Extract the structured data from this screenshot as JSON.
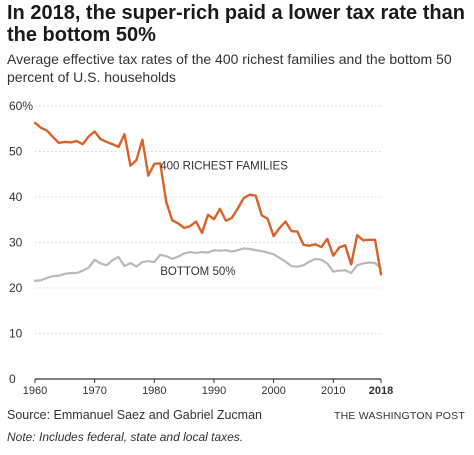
{
  "header": {
    "title": "In 2018, the super-rich paid a lower tax rate than the bottom 50%",
    "subtitle": "Average effective tax rates of the 400 richest families and the bottom 50 percent of U.S. households"
  },
  "footer": {
    "source": "Source: Emmanuel Saez and Gabriel Zucman",
    "credit": "THE WASHINGTON POST",
    "note": "Note: Includes federal, state and local taxes."
  },
  "colors": {
    "richest": "#d9622b",
    "bottom": "#b9b9b9",
    "axis": "#333333",
    "grid": "#d4d4d4",
    "text": "#333333"
  },
  "chart_data": {
    "type": "line",
    "title": "In 2018, the super-rich paid a lower tax rate than the bottom 50%",
    "xlim": [
      1960,
      2018
    ],
    "ylim": [
      0,
      60
    ],
    "x_ticks": [
      {
        "value": 1960,
        "label": "1960"
      },
      {
        "value": 1970,
        "label": "1970"
      },
      {
        "value": 1980,
        "label": "1980"
      },
      {
        "value": 1990,
        "label": "1990"
      },
      {
        "value": 2000,
        "label": "2000"
      },
      {
        "value": 2010,
        "label": "2010"
      },
      {
        "value": 2018,
        "label": "2018",
        "bold": true
      }
    ],
    "y_ticks": [
      {
        "value": 0,
        "label": "0"
      },
      {
        "value": 10,
        "label": "10"
      },
      {
        "value": 20,
        "label": "20"
      },
      {
        "value": 30,
        "label": "30"
      },
      {
        "value": 40,
        "label": "40"
      },
      {
        "value": 50,
        "label": "50"
      },
      {
        "value": 60,
        "label": "60%"
      }
    ],
    "grid": true,
    "series": [
      {
        "name": "400 RICHEST FAMILIES",
        "label_anchor": {
          "x": 1981,
          "y": 46
        },
        "x": [
          1960,
          1961,
          1962,
          1963,
          1964,
          1965,
          1966,
          1967,
          1968,
          1969,
          1970,
          1971,
          1972,
          1973,
          1974,
          1975,
          1976,
          1977,
          1978,
          1979,
          1980,
          1981,
          1982,
          1983,
          1984,
          1985,
          1986,
          1987,
          1988,
          1989,
          1990,
          1991,
          1992,
          1993,
          1994,
          1995,
          1996,
          1997,
          1998,
          1999,
          2000,
          2001,
          2002,
          2003,
          2004,
          2005,
          2006,
          2007,
          2008,
          2009,
          2010,
          2011,
          2012,
          2013,
          2014,
          2015,
          2016,
          2017,
          2018
        ],
        "y": [
          56.3,
          55.2,
          54.6,
          53.2,
          51.9,
          52.1,
          52.0,
          52.3,
          51.6,
          53.3,
          54.4,
          52.7,
          52.1,
          51.6,
          51.0,
          53.8,
          46.9,
          48.1,
          52.6,
          44.7,
          47.3,
          47.4,
          38.9,
          34.9,
          34.2,
          33.2,
          33.6,
          34.6,
          32.1,
          36.1,
          35.1,
          37.4,
          34.8,
          35.4,
          37.5,
          39.8,
          40.5,
          40.3,
          36.0,
          35.2,
          31.4,
          33.2,
          34.6,
          32.5,
          32.4,
          29.5,
          29.3,
          29.6,
          29.0,
          30.8,
          27.1,
          28.9,
          29.4,
          25.2,
          31.6,
          30.5,
          30.6,
          30.6,
          23.0
        ]
      },
      {
        "name": "BOTTOM 50%",
        "label_anchor": {
          "x": 1981,
          "y": 22.9
        },
        "x": [
          1960,
          1961,
          1962,
          1963,
          1964,
          1965,
          1966,
          1967,
          1968,
          1969,
          1970,
          1971,
          1972,
          1973,
          1974,
          1975,
          1976,
          1977,
          1978,
          1979,
          1980,
          1981,
          1982,
          1983,
          1984,
          1985,
          1986,
          1987,
          1988,
          1989,
          1990,
          1991,
          1992,
          1993,
          1994,
          1995,
          1996,
          1997,
          1998,
          1999,
          2000,
          2001,
          2002,
          2003,
          2004,
          2005,
          2006,
          2007,
          2008,
          2009,
          2010,
          2011,
          2012,
          2013,
          2014,
          2015,
          2016,
          2017,
          2018
        ],
        "y": [
          21.6,
          21.7,
          22.2,
          22.6,
          22.7,
          23.1,
          23.3,
          23.3,
          23.8,
          24.5,
          26.2,
          25.4,
          25.0,
          26.1,
          26.8,
          24.8,
          25.5,
          24.7,
          25.7,
          25.9,
          25.7,
          27.3,
          27.0,
          26.4,
          26.9,
          27.6,
          27.9,
          27.7,
          27.9,
          27.8,
          28.3,
          28.2,
          28.3,
          28.0,
          28.3,
          28.7,
          28.6,
          28.3,
          28.1,
          27.8,
          27.4,
          26.6,
          25.8,
          24.8,
          24.7,
          25.0,
          25.8,
          26.4,
          26.2,
          25.4,
          23.6,
          23.8,
          23.9,
          23.3,
          25.0,
          25.4,
          25.6,
          25.5,
          24.3
        ]
      }
    ]
  }
}
